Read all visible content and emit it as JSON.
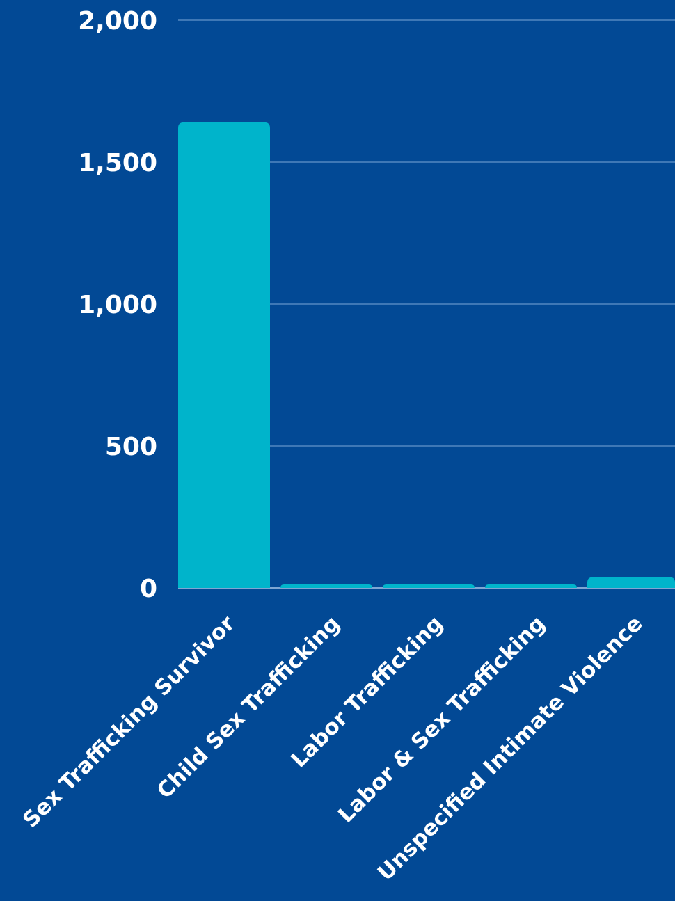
{
  "chart_data": {
    "type": "bar",
    "title": "",
    "xlabel": "",
    "ylabel": "",
    "categories": [
      "Sex Trafficking Survivor",
      "Child Sex Trafficking",
      "Labor Trafficking",
      "Labor & Sex Trafficking",
      "Unspecified Intimate Violence"
    ],
    "values": [
      1640,
      10,
      8,
      8,
      38
    ],
    "ylim": [
      0,
      2000
    ],
    "yticks": [
      0,
      500,
      1000,
      1500,
      2000
    ],
    "ytick_labels": [
      "0",
      "500",
      "1,000",
      "1,500",
      "2,000"
    ],
    "grid": true,
    "legend": "none",
    "colors": {
      "background": "#024995",
      "bar": "#00b4cb",
      "text": "#ffffff",
      "gridline": "#3f78b6"
    }
  }
}
